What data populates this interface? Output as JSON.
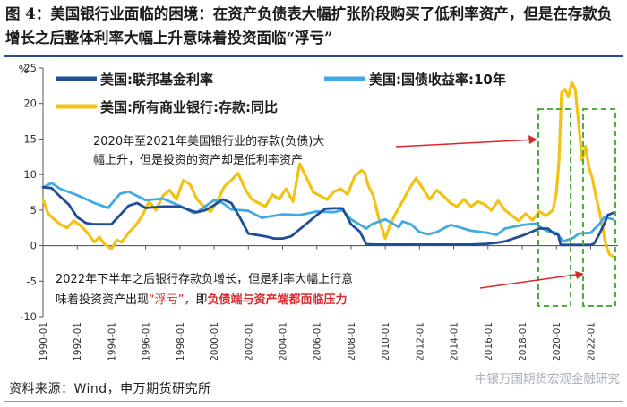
{
  "title": "图 4：美国银行业面临的困境：在资产负债表大幅扩张阶段购买了低利率资产，但是在存款负增长之后整体利率大幅上升意味着投资面临“浮亏”",
  "source": "资料来源：Wind，申万期货研究所",
  "watermark": "中银万国期货宏观金融研究",
  "colors": {
    "fed": "#1f4e96",
    "treasury": "#41a9e6",
    "deposits": "#f2c314",
    "annotation": "#d9272e",
    "box": "#4fae3c"
  },
  "annotation1": {
    "line1": "2020年至2021年美国银行业的存款(负债)大",
    "line2": "幅上升，但是投资的资产却是低利率资产"
  },
  "annotation2": {
    "line1": "2022年下半年之后银行存款负增长，但是利率大幅上行意",
    "line2_a": "味着投资资产出现",
    "line2_b": "“浮亏”",
    "line2_c": "，即",
    "line2_d": "负债端与资产端都面临压力"
  },
  "chart_data": {
    "type": "line",
    "ylabel": "%",
    "ylim": [
      -10,
      25
    ],
    "yticks": [
      -10,
      -5,
      0,
      5,
      10,
      15,
      20,
      25
    ],
    "xlim": [
      1990.0,
      2023.6
    ],
    "xticks": [
      "1990-01",
      "1992-01",
      "1994-01",
      "1996-01",
      "1998-01",
      "2000-01",
      "2002-01",
      "2004-01",
      "2006-01",
      "2008-01",
      "2010-01",
      "2012-01",
      "2014-01",
      "2016-01",
      "2018-01",
      "2020-01",
      "2022-01"
    ],
    "series": [
      {
        "name": "美国:联邦基金利率",
        "color": "#1f4e96",
        "x": [
          1990.0,
          1990.5,
          1991.0,
          1991.5,
          1992.0,
          1992.5,
          1993.0,
          1994.0,
          1994.5,
          1995.0,
          1995.5,
          1996.0,
          1997.0,
          1998.0,
          1998.8,
          1999.0,
          1999.5,
          2000.0,
          2000.5,
          2001.0,
          2001.5,
          2002.0,
          2003.0,
          2003.5,
          2004.0,
          2004.5,
          2005.0,
          2005.5,
          2006.0,
          2006.5,
          2007.0,
          2007.5,
          2008.0,
          2008.5,
          2008.9,
          2009.5,
          2012.0,
          2015.0,
          2015.9,
          2016.5,
          2017.0,
          2017.5,
          2018.0,
          2018.5,
          2019.0,
          2019.5,
          2019.9,
          2020.1,
          2020.25,
          2021.0,
          2022.0,
          2022.2,
          2022.5,
          2022.8,
          2023.0,
          2023.3
        ],
        "values": [
          8.2,
          8.1,
          6.9,
          5.8,
          4.0,
          3.2,
          3.0,
          3.0,
          4.3,
          5.6,
          6.0,
          5.3,
          5.5,
          5.5,
          4.8,
          4.7,
          5.0,
          5.7,
          6.5,
          6.0,
          4.0,
          1.7,
          1.3,
          1.0,
          1.0,
          1.3,
          2.3,
          3.3,
          4.3,
          5.2,
          5.25,
          5.25,
          3.0,
          2.0,
          0.2,
          0.15,
          0.15,
          0.15,
          0.25,
          0.4,
          0.6,
          1.0,
          1.4,
          1.9,
          2.4,
          2.4,
          1.6,
          1.6,
          0.1,
          0.1,
          0.1,
          0.3,
          1.6,
          3.1,
          4.3,
          4.6
        ]
      },
      {
        "name": "美国:国债收益率:10年",
        "color": "#41a9e6",
        "x": [
          1990.0,
          1990.5,
          1991.0,
          1992.0,
          1993.0,
          1993.8,
          1994.5,
          1995.0,
          1996.0,
          1997.0,
          1998.0,
          1998.8,
          1999.0,
          2000.0,
          2000.5,
          2001.0,
          2002.0,
          2002.8,
          2003.0,
          2004.0,
          2005.0,
          2006.0,
          2007.0,
          2007.5,
          2008.0,
          2008.9,
          2009.2,
          2010.0,
          2010.8,
          2011.0,
          2011.5,
          2012.0,
          2012.5,
          2013.0,
          2013.8,
          2014.0,
          2015.0,
          2016.0,
          2016.5,
          2017.0,
          2018.0,
          2018.8,
          2019.0,
          2019.5,
          2020.0,
          2020.4,
          2021.0,
          2021.3,
          2022.0,
          2022.5,
          2022.8,
          2023.3
        ],
        "values": [
          8.2,
          8.8,
          8.0,
          7.1,
          6.0,
          5.3,
          7.3,
          7.6,
          6.4,
          6.6,
          5.6,
          4.6,
          4.7,
          6.4,
          6.0,
          5.1,
          4.9,
          3.9,
          4.0,
          4.4,
          4.3,
          4.8,
          4.7,
          5.0,
          3.7,
          2.4,
          3.0,
          3.7,
          2.6,
          3.4,
          3.0,
          1.9,
          1.6,
          1.9,
          2.9,
          2.8,
          2.1,
          1.8,
          1.5,
          2.4,
          2.9,
          3.1,
          2.7,
          2.0,
          1.8,
          0.6,
          1.1,
          1.7,
          1.8,
          3.0,
          4.0,
          3.7
        ]
      },
      {
        "name": "美国:所有商业银行:存款:同比",
        "color": "#f2c314",
        "x": [
          1990.0,
          1990.3,
          1990.6,
          1991.0,
          1991.4,
          1991.8,
          1992.2,
          1992.6,
          1993.0,
          1993.3,
          1993.6,
          1994.0,
          1994.3,
          1994.6,
          1995.0,
          1995.4,
          1995.8,
          1996.2,
          1996.6,
          1997.0,
          1997.4,
          1997.8,
          1998.2,
          1998.6,
          1999.0,
          1999.4,
          1999.8,
          2000.2,
          2000.6,
          2001.0,
          2001.4,
          2001.8,
          2002.2,
          2002.6,
          2003.0,
          2003.4,
          2003.8,
          2004.2,
          2004.6,
          2005.0,
          2005.4,
          2005.8,
          2006.2,
          2006.6,
          2007.0,
          2007.4,
          2007.8,
          2008.2,
          2008.6,
          2008.8,
          2009.0,
          2009.3,
          2009.6,
          2010.0,
          2010.3,
          2010.6,
          2011.0,
          2011.4,
          2011.8,
          2012.2,
          2012.6,
          2013.0,
          2013.4,
          2013.8,
          2014.2,
          2014.6,
          2015.0,
          2015.4,
          2015.8,
          2016.2,
          2016.6,
          2017.0,
          2017.4,
          2017.8,
          2018.2,
          2018.6,
          2019.0,
          2019.4,
          2019.8,
          2020.0,
          2020.15,
          2020.3,
          2020.5,
          2020.7,
          2020.9,
          2021.1,
          2021.3,
          2021.5,
          2021.7,
          2021.9,
          2022.1,
          2022.3,
          2022.5,
          2022.7,
          2022.9,
          2023.1,
          2023.3
        ],
        "values": [
          6.5,
          4.5,
          3.8,
          3.0,
          2.5,
          3.5,
          2.8,
          1.8,
          0.5,
          1.2,
          0.2,
          -0.5,
          0.8,
          0.5,
          1.8,
          2.8,
          4.2,
          6.2,
          5.0,
          7.0,
          7.8,
          6.5,
          9.2,
          8.6,
          6.5,
          5.5,
          4.8,
          6.3,
          8.3,
          9.2,
          10.2,
          8.0,
          6.5,
          6.0,
          5.5,
          7.2,
          6.5,
          8.0,
          6.2,
          11.5,
          9.5,
          7.5,
          7.0,
          6.5,
          7.6,
          8.0,
          7.2,
          9.7,
          10.6,
          10.3,
          8.5,
          7.0,
          4.0,
          1.0,
          3.0,
          4.5,
          6.2,
          8.0,
          9.5,
          8.0,
          6.5,
          7.8,
          7.0,
          6.0,
          5.5,
          6.5,
          5.5,
          6.2,
          5.8,
          5.0,
          6.3,
          5.0,
          4.2,
          3.5,
          4.5,
          3.6,
          4.8,
          4.2,
          5.0,
          7.5,
          12.0,
          21.5,
          22.0,
          21.0,
          23.0,
          22.0,
          17.0,
          12.0,
          14.0,
          11.0,
          9.5,
          7.0,
          5.0,
          2.5,
          0.0,
          -1.2,
          -1.5
        ]
      }
    ]
  }
}
